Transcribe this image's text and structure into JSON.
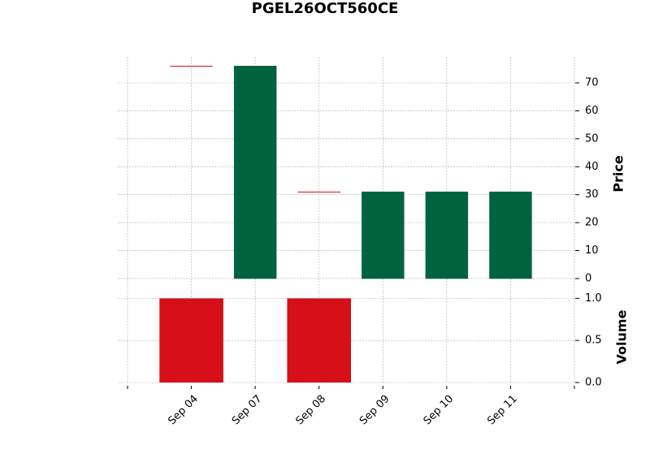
{
  "chart_data": {
    "type": "candlestick",
    "title": "PGEL26OCT560CE",
    "categories": [
      "Sep 04",
      "Sep 07",
      "Sep 08",
      "Sep 09",
      "Sep 10",
      "Sep 11"
    ],
    "open": [
      76,
      0,
      31,
      0,
      0,
      0
    ],
    "close": [
      76,
      76,
      31,
      31,
      31,
      31
    ],
    "volume": [
      1,
      0,
      1,
      0,
      0,
      0
    ],
    "up_color": "#006340",
    "down_color": "#d60f19",
    "ylabel": "Price",
    "ylim": [
      -3.5,
      79.3
    ],
    "yticks": [
      0,
      10,
      20,
      30,
      40,
      50,
      60,
      70
    ],
    "volume_label": "Volume",
    "volume_ylim": [
      0,
      1.1
    ],
    "volume_ticks": [
      {
        "value": 0,
        "label": "0.0"
      },
      {
        "value": 0.5,
        "label": "0.5"
      },
      {
        "value": 1,
        "label": "1.0"
      }
    ],
    "grid": true
  }
}
